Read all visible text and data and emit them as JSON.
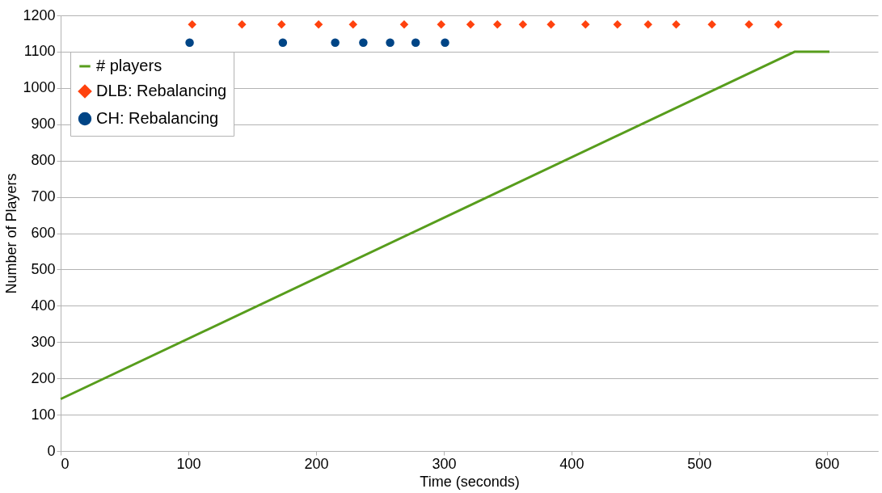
{
  "chart_data": {
    "type": "line",
    "xlabel": "Time (seconds)",
    "ylabel": "Number of Players",
    "xlim": [
      0,
      640
    ],
    "xticks": [
      0,
      100,
      200,
      300,
      400,
      500,
      600
    ],
    "ylim": [
      0,
      1200
    ],
    "yticks": [
      0,
      100,
      200,
      300,
      400,
      500,
      600,
      700,
      800,
      900,
      1000,
      1100,
      1200
    ],
    "grid": "y",
    "legend": "top left",
    "series": [
      {
        "name": "# players",
        "color": "#579d1c",
        "marker": "none",
        "line_style": "solid",
        "x": [
          0,
          575,
          602
        ],
        "values": [
          143,
          1100,
          1100
        ]
      },
      {
        "name": "DLB: Rebalancing",
        "type": "scatter",
        "color": "#ff420e",
        "marker": "diamond",
        "x": [
          103,
          142,
          173,
          202,
          229,
          269,
          298,
          321,
          342,
          362,
          384,
          411,
          436,
          460,
          482,
          510,
          539,
          562
        ],
        "values": [
          1175,
          1175,
          1175,
          1175,
          1175,
          1175,
          1175,
          1175,
          1175,
          1175,
          1175,
          1175,
          1175,
          1175,
          1175,
          1175,
          1175,
          1175
        ]
      },
      {
        "name": "CH: Rebalancing",
        "type": "scatter",
        "color": "#004586",
        "marker": "circle",
        "x": [
          101,
          174,
          215,
          237,
          258,
          278,
          301
        ],
        "values": [
          1125,
          1125,
          1125,
          1125,
          1125,
          1125,
          1125
        ]
      }
    ]
  }
}
